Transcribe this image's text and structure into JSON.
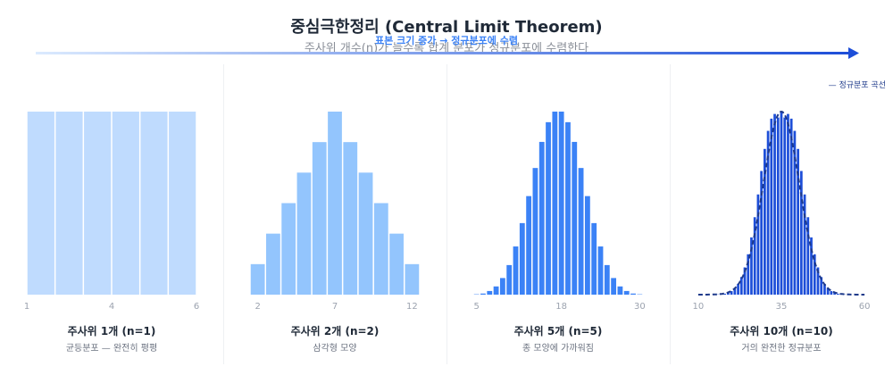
{
  "header": {
    "title": "중심극한정리 (Central Limit Theorem)",
    "subtitle": "주사위 개수(n)가 늘수록 합계 분포가 정규분포에 수렴한다",
    "arrow_label": "표본 크기 증가 → 정규분포에 수렴"
  },
  "legend": {
    "label": "— 정규분포 곡선"
  },
  "colors": {
    "panel1": "#bfdbfe",
    "panel2": "#93c5fd",
    "panel3": "#3b82f6",
    "panel4": "#1d4ed8",
    "curve": "#1e3a8a",
    "arrow_start": "#dbeafe",
    "arrow_end": "#1d4ed8",
    "tick": "#9ca3af"
  },
  "panels": [
    {
      "title": "주사위 1개 (n=1)",
      "desc": "균등분포 — 완전히 평평"
    },
    {
      "title": "주사위 2개 (n=2)",
      "desc": "삼각형 모양"
    },
    {
      "title": "주사위 5개 (n=5)",
      "desc": "종 모양에 가까워짐"
    },
    {
      "title": "주사위 10개 (n=10)",
      "desc": "거의 완전한 정규분포"
    }
  ],
  "chart_data": [
    {
      "type": "bar",
      "x": [
        1,
        2,
        3,
        4,
        5,
        6
      ],
      "values": [
        1,
        1,
        1,
        1,
        1,
        1
      ],
      "xticks": [
        "1",
        "4",
        "6"
      ],
      "xlim": [
        1,
        6
      ]
    },
    {
      "type": "bar",
      "x": [
        2,
        3,
        4,
        5,
        6,
        7,
        8,
        9,
        10,
        11,
        12
      ],
      "values": [
        1,
        2,
        3,
        4,
        5,
        6,
        5,
        4,
        3,
        2,
        1
      ],
      "xticks": [
        "2",
        "7",
        "12"
      ],
      "xlim": [
        2,
        12
      ]
    },
    {
      "type": "bar",
      "x": [
        5,
        6,
        7,
        8,
        9,
        10,
        11,
        12,
        13,
        14,
        15,
        16,
        17,
        18,
        19,
        20,
        21,
        22,
        23,
        24,
        25,
        26,
        27,
        28,
        29,
        30
      ],
      "values": [
        0.0002,
        0.0006,
        0.002,
        0.0045,
        0.0091,
        0.0162,
        0.0264,
        0.0392,
        0.054,
        0.0694,
        0.0837,
        0.0945,
        0.1003,
        0.1003,
        0.0945,
        0.0837,
        0.0694,
        0.054,
        0.0392,
        0.0264,
        0.0162,
        0.0091,
        0.0045,
        0.002,
        0.0006,
        0.0002
      ],
      "xticks": [
        "5",
        "18",
        "30"
      ],
      "xlim": [
        5,
        30
      ]
    },
    {
      "type": "bar",
      "x": [
        10,
        11,
        12,
        13,
        14,
        15,
        16,
        17,
        18,
        19,
        20,
        21,
        22,
        23,
        24,
        25,
        26,
        27,
        28,
        29,
        30,
        31,
        32,
        33,
        34,
        35,
        36,
        37,
        38,
        39,
        40,
        41,
        42,
        43,
        44,
        45,
        46,
        47,
        48,
        49,
        50,
        51,
        52,
        53,
        54,
        55,
        56,
        57,
        58,
        59,
        60
      ],
      "values": [
        0.0,
        0.0,
        0.0,
        0.0,
        0.0,
        0.0,
        0.0001,
        0.0002,
        0.0004,
        0.0008,
        0.0015,
        0.0027,
        0.0046,
        0.0075,
        0.0116,
        0.0172,
        0.0244,
        0.033,
        0.0427,
        0.0527,
        0.0621,
        0.0698,
        0.075,
        0.077,
        0.0755,
        0.078,
        0.0755,
        0.077,
        0.075,
        0.0698,
        0.0621,
        0.0527,
        0.0427,
        0.033,
        0.0244,
        0.0172,
        0.0116,
        0.0075,
        0.0046,
        0.0027,
        0.0015,
        0.0008,
        0.0004,
        0.0002,
        0.0001,
        0.0,
        0.0,
        0.0,
        0.0,
        0.0,
        0.0
      ],
      "xticks": [
        "10",
        "35",
        "60"
      ],
      "xlim": [
        10,
        60
      ],
      "normal_curve": {
        "mean": 35,
        "sd": 5.4
      }
    }
  ]
}
